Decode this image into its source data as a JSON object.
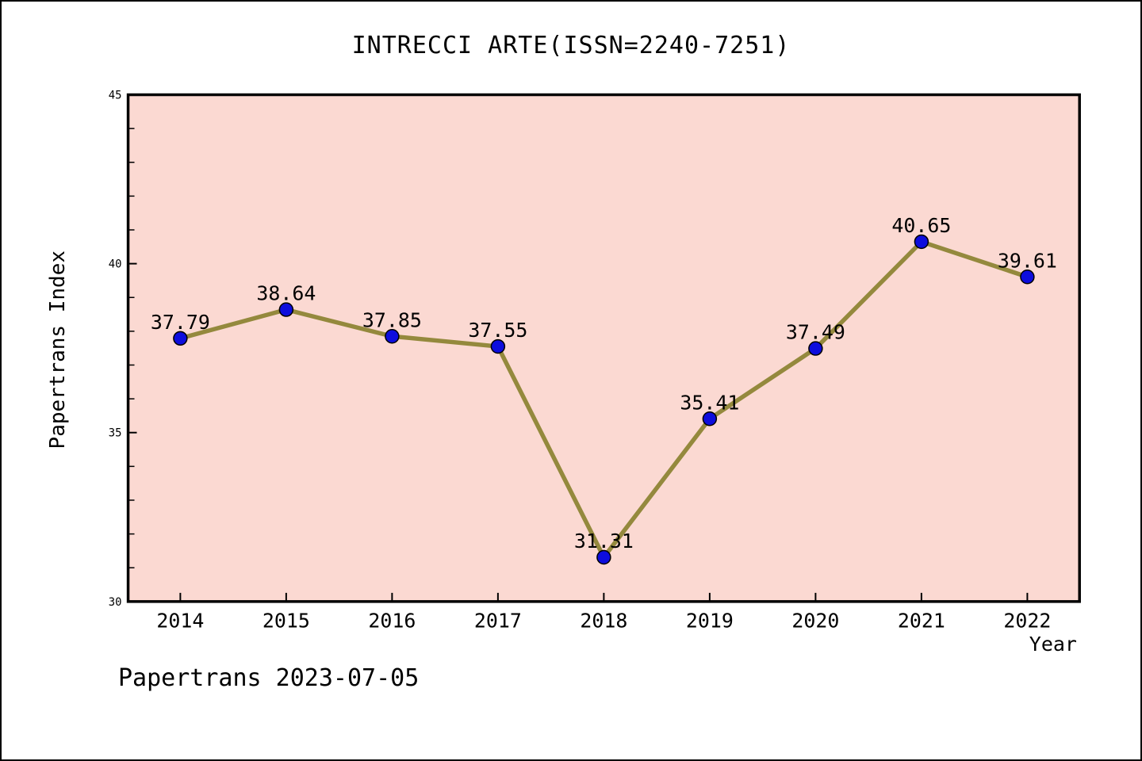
{
  "title": "INTRECCI ARTE(ISSN=2240-7251)",
  "footer": "Papertrans 2023-07-05",
  "chart_data": {
    "type": "line",
    "x": [
      "2014",
      "2015",
      "2016",
      "2017",
      "2018",
      "2019",
      "2020",
      "2021",
      "2022"
    ],
    "values": [
      37.79,
      38.64,
      37.85,
      37.55,
      31.31,
      35.41,
      37.49,
      40.65,
      39.61
    ],
    "point_labels": [
      "37.79",
      "38.64",
      "37.85",
      "37.55",
      "31.31",
      "35.41",
      "37.49",
      "40.65",
      "39.61"
    ],
    "title": "INTRECCI ARTE(ISSN=2240-7251)",
    "xlabel": "Year",
    "ylabel": "Papertrans Index",
    "ylim": [
      30,
      45
    ],
    "yticks_major": [
      30,
      35,
      40,
      45
    ],
    "ytick_labels": [
      "30",
      "35",
      "40",
      "45"
    ],
    "y_minor_step": 1,
    "grid": false,
    "legend": false,
    "colors": {
      "page_background": "#ffffff",
      "plot_background": "#fbd9d2",
      "line": "#94893d",
      "marker_fill": "#0d0ddd",
      "marker_edge": "#000000",
      "frame": "#000000",
      "text": "#000000"
    }
  }
}
